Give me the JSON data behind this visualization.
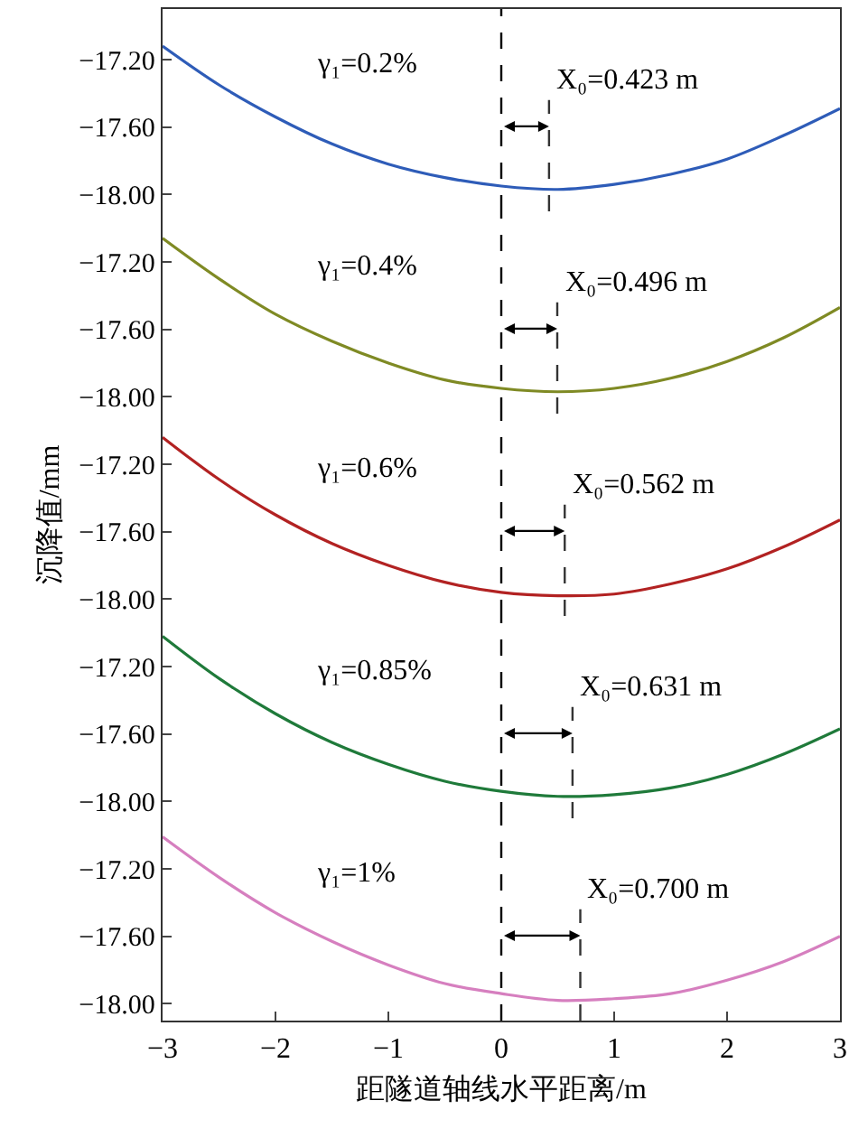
{
  "chart_data": [
    {
      "type": "line",
      "x": [
        -3,
        -2.5,
        -2,
        -1.5,
        -1,
        -0.5,
        0,
        0.5,
        1,
        1.5,
        2,
        2.5,
        3
      ],
      "xlim": [
        -3,
        3
      ],
      "ylim": [
        -18.1,
        -16.9
      ],
      "yticks": [
        {
          "value": -17.2,
          "label": "−17.20"
        },
        {
          "value": -17.6,
          "label": "−17.60"
        },
        {
          "value": -18.0,
          "label": "−18.00"
        }
      ],
      "tick_labels": "y",
      "series": [
        {
          "color": "#2e5cb8",
          "values": [
            -17.12,
            -17.35,
            -17.54,
            -17.7,
            -17.82,
            -17.9,
            -17.95,
            -17.97,
            -17.94,
            -17.88,
            -17.79,
            -17.65,
            -17.49
          ]
        }
      ],
      "ref_lines": [
        {
          "axis": "x",
          "value": 0,
          "line_style": "dashed",
          "color": "#000000"
        },
        {
          "axis": "x",
          "value": 0.423,
          "line_style": "dashed",
          "color": "#333333",
          "label": "X₀=0.423 m"
        }
      ],
      "annotations": [
        "γ₁=0.2%"
      ]
    },
    {
      "type": "line",
      "x": [
        -3,
        -2.5,
        -2,
        -1.5,
        -1,
        -0.5,
        0,
        0.5,
        1,
        1.5,
        2,
        2.5,
        3
      ],
      "xlim": [
        -3,
        3
      ],
      "ylim": [
        -18.1,
        -16.9
      ],
      "yticks": [
        {
          "value": -17.2,
          "label": "−17.20"
        },
        {
          "value": -17.6,
          "label": "−17.60"
        },
        {
          "value": -18.0,
          "label": "−18.00"
        }
      ],
      "tick_labels": "y",
      "series": [
        {
          "color": "#7f8a24",
          "values": [
            -17.06,
            -17.3,
            -17.51,
            -17.67,
            -17.8,
            -17.9,
            -17.95,
            -17.97,
            -17.95,
            -17.89,
            -17.79,
            -17.65,
            -17.47
          ]
        }
      ],
      "ref_lines": [
        {
          "axis": "x",
          "value": 0,
          "line_style": "dashed",
          "color": "#000000"
        },
        {
          "axis": "x",
          "value": 0.496,
          "line_style": "dashed",
          "color": "#333333",
          "label": "X₀=0.496 m"
        }
      ],
      "annotations": [
        "γ₁=0.4%"
      ]
    },
    {
      "type": "line",
      "x": [
        -3,
        -2.5,
        -2,
        -1.5,
        -1,
        -0.5,
        0,
        0.5,
        1,
        1.5,
        2,
        2.5,
        3
      ],
      "xlim": [
        -3,
        3
      ],
      "ylim": [
        -18.1,
        -16.9
      ],
      "yticks": [
        {
          "value": -17.2,
          "label": "−17.20"
        },
        {
          "value": -17.6,
          "label": "−17.60"
        },
        {
          "value": -18.0,
          "label": "−18.00"
        }
      ],
      "tick_labels": "y",
      "ylabel": "沉降值/mm",
      "series": [
        {
          "color": "#b22222",
          "values": [
            -17.04,
            -17.29,
            -17.5,
            -17.67,
            -17.8,
            -17.9,
            -17.96,
            -17.98,
            -17.97,
            -17.91,
            -17.82,
            -17.69,
            -17.53
          ]
        }
      ],
      "ref_lines": [
        {
          "axis": "x",
          "value": 0,
          "line_style": "dashed",
          "color": "#000000"
        },
        {
          "axis": "x",
          "value": 0.562,
          "line_style": "dashed",
          "color": "#333333",
          "label": "X₀=0.562 m"
        }
      ],
      "annotations": [
        "γ₁=0.6%"
      ]
    },
    {
      "type": "line",
      "x": [
        -3,
        -2.5,
        -2,
        -1.5,
        -1,
        -0.5,
        0,
        0.5,
        1,
        1.5,
        2,
        2.5,
        3
      ],
      "xlim": [
        -3,
        3
      ],
      "ylim": [
        -18.1,
        -16.9
      ],
      "yticks": [
        {
          "value": -17.2,
          "label": "−17.20"
        },
        {
          "value": -17.6,
          "label": "−17.60"
        },
        {
          "value": -18.0,
          "label": "−18.00"
        }
      ],
      "tick_labels": "y",
      "series": [
        {
          "color": "#1f7a3a",
          "values": [
            -17.02,
            -17.27,
            -17.48,
            -17.65,
            -17.78,
            -17.88,
            -17.94,
            -17.97,
            -17.96,
            -17.92,
            -17.84,
            -17.72,
            -17.57
          ]
        }
      ],
      "ref_lines": [
        {
          "axis": "x",
          "value": 0,
          "line_style": "dashed",
          "color": "#000000"
        },
        {
          "axis": "x",
          "value": 0.631,
          "line_style": "dashed",
          "color": "#333333",
          "label": "X₀=0.631 m"
        }
      ],
      "annotations": [
        "γ₁=0.85%"
      ]
    },
    {
      "type": "line",
      "x": [
        -3,
        -2.5,
        -2,
        -1.5,
        -1,
        -0.5,
        0,
        0.5,
        1,
        1.5,
        2,
        2.5,
        3
      ],
      "xlim": [
        -3,
        3
      ],
      "xticks": [
        {
          "value": -3,
          "label": "−3"
        },
        {
          "value": -2,
          "label": "−2"
        },
        {
          "value": -1,
          "label": "−1"
        },
        0,
        1,
        2,
        3
      ],
      "ylim": [
        -18.1,
        -16.9
      ],
      "yticks": [
        {
          "value": -17.2,
          "label": "−17.20"
        },
        {
          "value": -17.6,
          "label": "−17.60"
        },
        {
          "value": -18.0,
          "label": "−18.00"
        }
      ],
      "xlabel": "距隧道轴线水平距离/m",
      "series": [
        {
          "color": "#d67fbf",
          "values": [
            -17.01,
            -17.25,
            -17.46,
            -17.63,
            -17.77,
            -17.88,
            -17.94,
            -17.98,
            -17.97,
            -17.94,
            -17.86,
            -17.75,
            -17.6
          ]
        }
      ],
      "ref_lines": [
        {
          "axis": "x",
          "value": 0,
          "line_style": "dashed",
          "color": "#000000"
        },
        {
          "axis": "x",
          "value": 0.7,
          "line_style": "dashed",
          "color": "#333333",
          "label": "X₀=0.700 m"
        }
      ],
      "annotations": [
        "γ₁=1%"
      ]
    }
  ]
}
